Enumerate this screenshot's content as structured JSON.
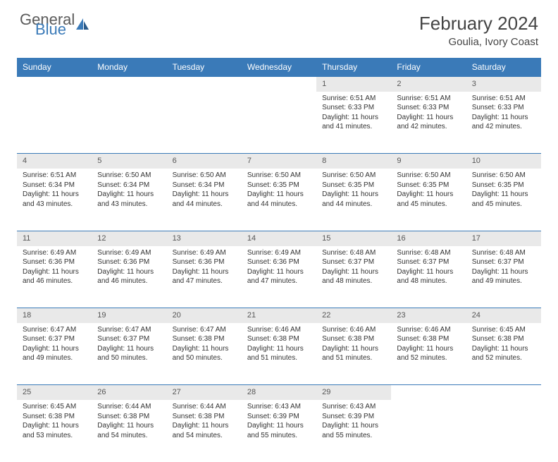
{
  "logo": {
    "text1": "General",
    "text2": "Blue",
    "color1": "#5a5a5a",
    "color2": "#3a7ab8"
  },
  "title": "February 2024",
  "location": "Goulia, Ivory Coast",
  "header_bg": "#3a7ab8",
  "daynum_bg": "#e9e9e9",
  "row_border": "#3a7ab8",
  "days": [
    "Sunday",
    "Monday",
    "Tuesday",
    "Wednesday",
    "Thursday",
    "Friday",
    "Saturday"
  ],
  "weeks": [
    [
      null,
      null,
      null,
      null,
      {
        "n": "1",
        "sr": "6:51 AM",
        "ss": "6:33 PM",
        "dl": "11 hours and 41 minutes."
      },
      {
        "n": "2",
        "sr": "6:51 AM",
        "ss": "6:33 PM",
        "dl": "11 hours and 42 minutes."
      },
      {
        "n": "3",
        "sr": "6:51 AM",
        "ss": "6:33 PM",
        "dl": "11 hours and 42 minutes."
      }
    ],
    [
      {
        "n": "4",
        "sr": "6:51 AM",
        "ss": "6:34 PM",
        "dl": "11 hours and 43 minutes."
      },
      {
        "n": "5",
        "sr": "6:50 AM",
        "ss": "6:34 PM",
        "dl": "11 hours and 43 minutes."
      },
      {
        "n": "6",
        "sr": "6:50 AM",
        "ss": "6:34 PM",
        "dl": "11 hours and 44 minutes."
      },
      {
        "n": "7",
        "sr": "6:50 AM",
        "ss": "6:35 PM",
        "dl": "11 hours and 44 minutes."
      },
      {
        "n": "8",
        "sr": "6:50 AM",
        "ss": "6:35 PM",
        "dl": "11 hours and 44 minutes."
      },
      {
        "n": "9",
        "sr": "6:50 AM",
        "ss": "6:35 PM",
        "dl": "11 hours and 45 minutes."
      },
      {
        "n": "10",
        "sr": "6:50 AM",
        "ss": "6:35 PM",
        "dl": "11 hours and 45 minutes."
      }
    ],
    [
      {
        "n": "11",
        "sr": "6:49 AM",
        "ss": "6:36 PM",
        "dl": "11 hours and 46 minutes."
      },
      {
        "n": "12",
        "sr": "6:49 AM",
        "ss": "6:36 PM",
        "dl": "11 hours and 46 minutes."
      },
      {
        "n": "13",
        "sr": "6:49 AM",
        "ss": "6:36 PM",
        "dl": "11 hours and 47 minutes."
      },
      {
        "n": "14",
        "sr": "6:49 AM",
        "ss": "6:36 PM",
        "dl": "11 hours and 47 minutes."
      },
      {
        "n": "15",
        "sr": "6:48 AM",
        "ss": "6:37 PM",
        "dl": "11 hours and 48 minutes."
      },
      {
        "n": "16",
        "sr": "6:48 AM",
        "ss": "6:37 PM",
        "dl": "11 hours and 48 minutes."
      },
      {
        "n": "17",
        "sr": "6:48 AM",
        "ss": "6:37 PM",
        "dl": "11 hours and 49 minutes."
      }
    ],
    [
      {
        "n": "18",
        "sr": "6:47 AM",
        "ss": "6:37 PM",
        "dl": "11 hours and 49 minutes."
      },
      {
        "n": "19",
        "sr": "6:47 AM",
        "ss": "6:37 PM",
        "dl": "11 hours and 50 minutes."
      },
      {
        "n": "20",
        "sr": "6:47 AM",
        "ss": "6:38 PM",
        "dl": "11 hours and 50 minutes."
      },
      {
        "n": "21",
        "sr": "6:46 AM",
        "ss": "6:38 PM",
        "dl": "11 hours and 51 minutes."
      },
      {
        "n": "22",
        "sr": "6:46 AM",
        "ss": "6:38 PM",
        "dl": "11 hours and 51 minutes."
      },
      {
        "n": "23",
        "sr": "6:46 AM",
        "ss": "6:38 PM",
        "dl": "11 hours and 52 minutes."
      },
      {
        "n": "24",
        "sr": "6:45 AM",
        "ss": "6:38 PM",
        "dl": "11 hours and 52 minutes."
      }
    ],
    [
      {
        "n": "25",
        "sr": "6:45 AM",
        "ss": "6:38 PM",
        "dl": "11 hours and 53 minutes."
      },
      {
        "n": "26",
        "sr": "6:44 AM",
        "ss": "6:38 PM",
        "dl": "11 hours and 54 minutes."
      },
      {
        "n": "27",
        "sr": "6:44 AM",
        "ss": "6:38 PM",
        "dl": "11 hours and 54 minutes."
      },
      {
        "n": "28",
        "sr": "6:43 AM",
        "ss": "6:39 PM",
        "dl": "11 hours and 55 minutes."
      },
      {
        "n": "29",
        "sr": "6:43 AM",
        "ss": "6:39 PM",
        "dl": "11 hours and 55 minutes."
      },
      null,
      null
    ]
  ],
  "labels": {
    "sunrise": "Sunrise:",
    "sunset": "Sunset:",
    "daylight": "Daylight:"
  }
}
